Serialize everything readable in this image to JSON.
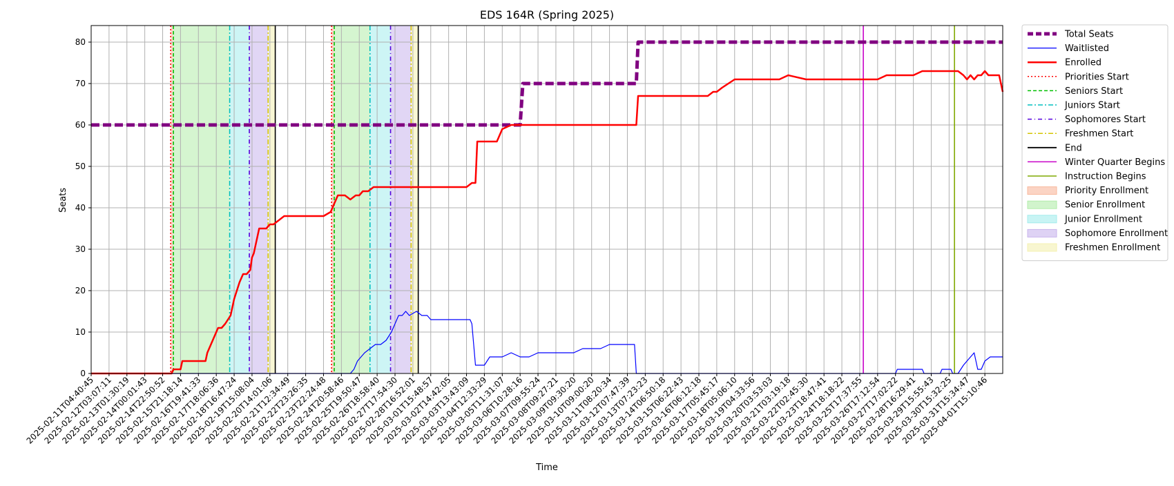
{
  "chart_data": {
    "type": "line",
    "title": "EDS 164R (Spring 2025)",
    "xlabel": "Time",
    "ylabel": "Seats",
    "ylim": [
      0,
      84
    ],
    "xlim": [
      0,
      51
    ],
    "yticks": [
      0,
      10,
      20,
      30,
      40,
      50,
      60,
      70,
      80
    ],
    "grid": true,
    "legend_position": "outside-right",
    "x_tick_labels": [
      "2025-02-11T04:40:45",
      "2025-02-12T03:07:11",
      "2025-02-13T01:30:19",
      "2025-02-14T00:01:43",
      "2025-02-14T22:50:52",
      "2025-02-15T21:18:14",
      "2025-02-16T19:41:33",
      "2025-02-17T18:06:36",
      "2025-02-18T16:47:24",
      "2025-02-19T15:08:04",
      "2025-02-20T14:01:06",
      "2025-02-21T12:34:49",
      "2025-02-22T23:26:35",
      "2025-02-23T22:24:48",
      "2025-02-24T20:58:46",
      "2025-02-25T19:50:47",
      "2025-02-26T18:58:40",
      "2025-02-27T17:54:30",
      "2025-02-28T16:52:01",
      "2025-03-01T15:48:57",
      "2025-03-02T14:42:05",
      "2025-03-03T13:43:09",
      "2025-03-04T12:33:29",
      "2025-03-05T11:31:07",
      "2025-03-06T10:28:16",
      "2025-03-07T09:55:24",
      "2025-03-08T09:27:21",
      "2025-03-09T09:30:20",
      "2025-03-10T09:00:20",
      "2025-03-11T08:20:34",
      "2025-03-12T07:47:39",
      "2025-03-13T07:23:23",
      "2025-03-14T06:50:18",
      "2025-03-15T06:22:43",
      "2025-03-16T06:12:18",
      "2025-03-17T05:45:17",
      "2025-03-18T05:06:10",
      "2025-03-19T04:33:56",
      "2025-03-20T03:53:03",
      "2025-03-21T03:19:18",
      "2025-03-22T02:45:30",
      "2025-03-23T18:47:41",
      "2025-03-24T18:18:22",
      "2025-03-25T17:37:55",
      "2025-03-26T17:12:54",
      "2025-03-27T17:02:22",
      "2025-03-28T16:29:41",
      "2025-03-29T15:55:43",
      "2025-03-30T15:32:25",
      "2025-03-31T15:34:47",
      "2025-04-01T15:10:46"
    ],
    "series": [
      {
        "name": "Total Seats",
        "color": "#800080",
        "style": "dashed-thick",
        "x": [
          0,
          24.0,
          24.15,
          30.5,
          30.6,
          51
        ],
        "y": [
          60,
          60,
          70,
          70,
          80,
          80
        ]
      },
      {
        "name": "Waitlisted",
        "color": "#0000ff",
        "style": "solid-thin",
        "x": [
          0,
          14.3,
          14.5,
          14.7,
          14.9,
          15.1,
          15.3,
          15.6,
          15.9,
          16.2,
          16.5,
          16.8,
          17.0,
          17.2,
          17.4,
          17.6,
          17.8,
          18.2,
          18.5,
          18.8,
          19.0,
          19.3,
          19.8,
          21.2,
          21.3,
          21.5,
          21.8,
          22.0,
          22.3,
          22.6,
          23.0,
          23.5,
          24.0,
          24.5,
          25.0,
          25.5,
          26.0,
          26.5,
          27.0,
          27.5,
          28.0,
          28.5,
          29.0,
          29.5,
          30.0,
          30.4,
          30.5,
          44.0,
          45.0,
          45.1,
          46.5,
          46.6,
          47.5,
          47.6,
          48.1,
          48.2,
          48.5,
          48.8,
          49.0,
          49.2,
          49.4,
          49.6,
          49.8,
          50.0,
          50.3,
          51
        ],
        "y": [
          0,
          0,
          0,
          1,
          3,
          4,
          5,
          6,
          7,
          7,
          8,
          10,
          12,
          14,
          14,
          15,
          14,
          15,
          14,
          14,
          13,
          13,
          13,
          13,
          12,
          2,
          2,
          2,
          4,
          4,
          4,
          5,
          4,
          4,
          5,
          5,
          5,
          5,
          5,
          6,
          6,
          6,
          7,
          7,
          7,
          7,
          0,
          0,
          0,
          1,
          1,
          0,
          0,
          1,
          1,
          0,
          0,
          2,
          3,
          4,
          5,
          1,
          1,
          3,
          4,
          4
        ]
      },
      {
        "name": "Enrolled",
        "color": "#ff0000",
        "style": "solid-thick",
        "x": [
          0,
          4.5,
          4.6,
          5.0,
          5.1,
          6.4,
          6.5,
          6.7,
          6.9,
          7.1,
          7.3,
          7.5,
          7.8,
          8.0,
          8.3,
          8.5,
          8.7,
          8.9,
          9.0,
          9.1,
          9.2,
          9.3,
          9.4,
          9.6,
          9.8,
          10.0,
          10.2,
          10.5,
          10.8,
          11.0,
          11.2,
          11.6,
          12.0,
          13.0,
          13.4,
          13.5,
          13.6,
          13.7,
          13.8,
          14.0,
          14.2,
          14.5,
          14.8,
          15.0,
          15.2,
          15.5,
          15.8,
          16.0,
          16.2,
          16.5,
          16.8,
          17.0,
          17.5,
          18.0,
          19.0,
          20.0,
          21.0,
          21.3,
          21.5,
          21.6,
          22.5,
          22.7,
          22.8,
          23.0,
          23.5,
          24.0,
          30.5,
          30.6,
          30.8,
          32.0,
          33.0,
          34.0,
          34.5,
          34.8,
          35.0,
          35.3,
          36.0,
          37.0,
          38.0,
          38.5,
          39.0,
          40.0,
          41.0,
          41.5,
          42.0,
          42.5,
          43.0,
          44.0,
          44.5,
          45.0,
          46.0,
          46.5,
          47.0,
          47.5,
          48.0,
          48.5,
          48.8,
          49.0,
          49.2,
          49.4,
          49.6,
          49.8,
          50.0,
          50.2,
          50.5,
          50.8,
          51
        ],
        "y": [
          0,
          0,
          1,
          1,
          3,
          3,
          5,
          7,
          9,
          11,
          11,
          12,
          14,
          18,
          22,
          24,
          24,
          25,
          28,
          29,
          31,
          33,
          35,
          35,
          35,
          36,
          36,
          37,
          38,
          38,
          38,
          38,
          38,
          38,
          39,
          40,
          41,
          42,
          43,
          43,
          43,
          42,
          43,
          43,
          44,
          44,
          45,
          45,
          45,
          45,
          45,
          45,
          45,
          45,
          45,
          45,
          45,
          46,
          46,
          56,
          56,
          56,
          57,
          59,
          60,
          60,
          60,
          67,
          67,
          67,
          67,
          67,
          67,
          68,
          68,
          69,
          71,
          71,
          71,
          71,
          72,
          71,
          71,
          71,
          71,
          71,
          71,
          71,
          72,
          72,
          72,
          73,
          73,
          73,
          73,
          73,
          72,
          71,
          72,
          71,
          72,
          72,
          73,
          72,
          72,
          72,
          68
        ]
      }
    ],
    "periods": [
      {
        "name": "Priorities Start",
        "start_line": true
      },
      {
        "name": "Seniors Start"
      },
      {
        "name": "Juniors Start"
      },
      {
        "name": "Sophomores Start"
      },
      {
        "name": "Freshmen Start"
      },
      {
        "name": "End"
      }
    ],
    "vlines": [
      {
        "legend": "Priorities Start",
        "color": "#ff0000",
        "dash": "2,3",
        "x": [
          4.45,
          13.45
        ]
      },
      {
        "legend": "Seniors Start",
        "color": "#00c000",
        "dash": "5,3",
        "x": [
          4.6,
          13.6
        ]
      },
      {
        "legend": "Juniors Start",
        "color": "#00bfbf",
        "dash": "7,3,2,3",
        "x": [
          7.75,
          15.6
        ]
      },
      {
        "legend": "Sophomores Start",
        "color": "#5500dd",
        "dash": "6,4,1,4",
        "x": [
          8.85,
          16.75
        ]
      },
      {
        "legend": "Freshmen Start",
        "color": "#d4c400",
        "dash": "7,3,2,3",
        "x": [
          9.9,
          17.9
        ]
      },
      {
        "legend": "End",
        "color": "#000000",
        "dash": "",
        "x": [
          10.3,
          18.3
        ]
      },
      {
        "legend": "Winter Quarter Begins",
        "color": "#c800c8",
        "dash": "",
        "x": [
          43.2
        ]
      },
      {
        "legend": "Instruction Begins",
        "color": "#7fa800",
        "dash": "",
        "x": [
          48.3
        ]
      }
    ],
    "bands": [
      {
        "legend": "Priority Enrollment",
        "color": "#f8b89c",
        "ranges": [
          [
            4.45,
            4.6
          ],
          [
            13.45,
            13.6
          ]
        ]
      },
      {
        "legend": "Senior Enrollment",
        "color": "#b2ecaa",
        "ranges": [
          [
            4.6,
            7.75
          ],
          [
            13.6,
            15.6
          ]
        ]
      },
      {
        "legend": "Junior Enrollment",
        "color": "#a4ecec",
        "ranges": [
          [
            7.75,
            8.85
          ],
          [
            15.6,
            16.75
          ]
        ]
      },
      {
        "legend": "Sophomore Enrollment",
        "color": "#c8b4ec",
        "ranges": [
          [
            8.85,
            9.9
          ],
          [
            16.75,
            17.9
          ]
        ]
      },
      {
        "legend": "Freshmen Enrollment",
        "color": "#f4f0b0",
        "ranges": [
          [
            9.9,
            10.3
          ],
          [
            17.9,
            18.3
          ]
        ]
      }
    ],
    "legend": [
      {
        "label": "Total Seats",
        "kind": "line",
        "color": "#800080",
        "width": 5,
        "dash": "8,4"
      },
      {
        "label": "Waitlisted",
        "kind": "line",
        "color": "#0000ff",
        "width": 1.2,
        "dash": ""
      },
      {
        "label": "Enrolled",
        "kind": "line",
        "color": "#ff0000",
        "width": 2.5,
        "dash": ""
      },
      {
        "label": "Priorities Start",
        "kind": "line",
        "color": "#ff0000",
        "width": 1.5,
        "dash": "2,3"
      },
      {
        "label": "Seniors Start",
        "kind": "line",
        "color": "#00c000",
        "width": 1.5,
        "dash": "5,3"
      },
      {
        "label": "Juniors Start",
        "kind": "line",
        "color": "#00bfbf",
        "width": 1.5,
        "dash": "7,3,2,3"
      },
      {
        "label": "Sophomores Start",
        "kind": "line",
        "color": "#5500dd",
        "width": 1.5,
        "dash": "6,4,1,4"
      },
      {
        "label": "Freshmen Start",
        "kind": "line",
        "color": "#d4c400",
        "width": 1.5,
        "dash": "7,3,2,3"
      },
      {
        "label": "End",
        "kind": "line",
        "color": "#000000",
        "width": 1.8,
        "dash": ""
      },
      {
        "label": "Winter Quarter Begins",
        "kind": "line",
        "color": "#c800c8",
        "width": 1.5,
        "dash": ""
      },
      {
        "label": "Instruction Begins",
        "kind": "line",
        "color": "#7fa800",
        "width": 1.5,
        "dash": ""
      },
      {
        "label": "Priority Enrollment",
        "kind": "patch",
        "color": "#f8b89c"
      },
      {
        "label": "Senior Enrollment",
        "kind": "patch",
        "color": "#b2ecaa"
      },
      {
        "label": "Junior Enrollment",
        "kind": "patch",
        "color": "#a4ecec"
      },
      {
        "label": "Sophomore Enrollment",
        "kind": "patch",
        "color": "#c8b4ec"
      },
      {
        "label": "Freshmen Enrollment",
        "kind": "patch",
        "color": "#f4f0b0"
      }
    ]
  }
}
